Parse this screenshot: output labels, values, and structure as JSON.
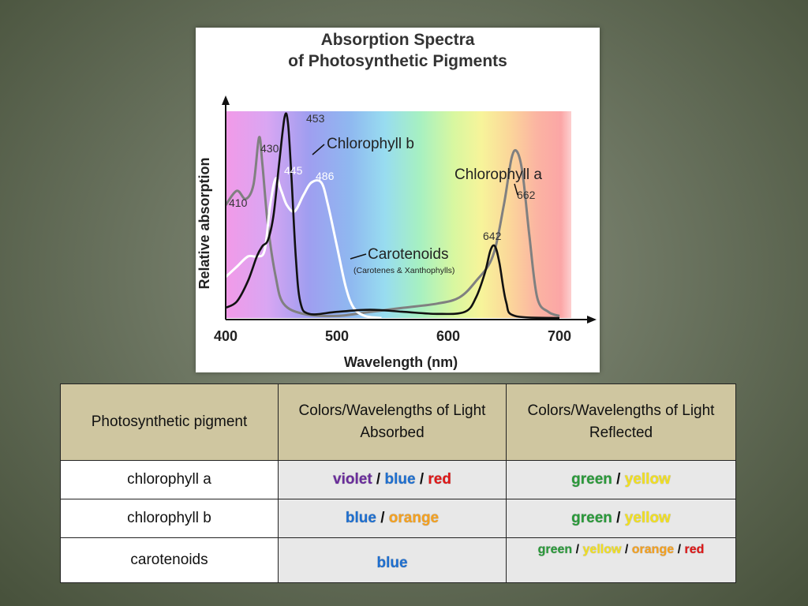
{
  "chart_data": {
    "type": "line",
    "title": [
      "Absorption Spectra",
      "of Photosynthetic Pigments"
    ],
    "xlabel": "Wavelength (nm)",
    "ylabel": "Relative absorption",
    "xlim": [
      400,
      700
    ],
    "xticks": [
      "400",
      "500",
      "600",
      "700"
    ],
    "spectrum_background": "visible light gradient from violet (400 nm) to red (700 nm)",
    "series": [
      {
        "name": "Chlorophyll a",
        "color": "#808080",
        "sublabel": "",
        "peaks": [
          "410",
          "430",
          "662"
        ],
        "points": [
          [
            400,
            0.55
          ],
          [
            410,
            0.62
          ],
          [
            418,
            0.58
          ],
          [
            425,
            0.65
          ],
          [
            430,
            0.88
          ],
          [
            433,
            0.75
          ],
          [
            438,
            0.45
          ],
          [
            445,
            0.2
          ],
          [
            452,
            0.07
          ],
          [
            470,
            0.02
          ],
          [
            500,
            0.01
          ],
          [
            530,
            0.03
          ],
          [
            560,
            0.05
          ],
          [
            590,
            0.07
          ],
          [
            610,
            0.1
          ],
          [
            625,
            0.18
          ],
          [
            640,
            0.3
          ],
          [
            650,
            0.55
          ],
          [
            657,
            0.78
          ],
          [
            662,
            0.81
          ],
          [
            667,
            0.7
          ],
          [
            673,
            0.4
          ],
          [
            680,
            0.1
          ],
          [
            690,
            0.03
          ],
          [
            700,
            0.01
          ]
        ]
      },
      {
        "name": "Chlorophyll b",
        "color": "#111111",
        "sublabel": "",
        "peaks": [
          "453",
          "642"
        ],
        "points": [
          [
            400,
            0.05
          ],
          [
            410,
            0.08
          ],
          [
            420,
            0.18
          ],
          [
            428,
            0.3
          ],
          [
            433,
            0.35
          ],
          [
            438,
            0.38
          ],
          [
            443,
            0.5
          ],
          [
            448,
            0.75
          ],
          [
            453,
            0.98
          ],
          [
            456,
            0.95
          ],
          [
            459,
            0.7
          ],
          [
            463,
            0.3
          ],
          [
            467,
            0.08
          ],
          [
            475,
            0.02
          ],
          [
            500,
            0.03
          ],
          [
            530,
            0.04
          ],
          [
            560,
            0.03
          ],
          [
            590,
            0.02
          ],
          [
            615,
            0.03
          ],
          [
            625,
            0.1
          ],
          [
            633,
            0.22
          ],
          [
            638,
            0.33
          ],
          [
            642,
            0.35
          ],
          [
            646,
            0.27
          ],
          [
            652,
            0.08
          ],
          [
            660,
            0.01
          ],
          [
            700,
            0.0
          ]
        ]
      },
      {
        "name": "Carotenoids",
        "color": "#ffffff",
        "sublabel": "(Carotenes & Xanthophylls)",
        "peaks": [
          "445",
          "486"
        ],
        "points": [
          [
            400,
            0.2
          ],
          [
            410,
            0.25
          ],
          [
            420,
            0.3
          ],
          [
            428,
            0.3
          ],
          [
            435,
            0.33
          ],
          [
            440,
            0.55
          ],
          [
            445,
            0.68
          ],
          [
            450,
            0.62
          ],
          [
            455,
            0.55
          ],
          [
            462,
            0.52
          ],
          [
            470,
            0.6
          ],
          [
            477,
            0.66
          ],
          [
            486,
            0.66
          ],
          [
            492,
            0.55
          ],
          [
            500,
            0.35
          ],
          [
            508,
            0.15
          ],
          [
            515,
            0.05
          ],
          [
            525,
            0.01
          ],
          [
            540,
            0.0
          ]
        ]
      }
    ]
  },
  "table": {
    "headers": [
      "Photosynthetic pigment",
      "Colors/Wavelengths of Light Absorbed",
      "Colors/Wavelengths of Light Reflected"
    ],
    "rows": [
      {
        "pigment": "chlorophyll a",
        "absorbed": [
          {
            "text": "violet",
            "color": "#6a2c9c"
          },
          {
            "text": "blue",
            "color": "#1e6fd0"
          },
          {
            "text": "red",
            "color": "#e01818"
          }
        ],
        "reflected": [
          {
            "text": "green",
            "color": "#2a9a3a"
          },
          {
            "text": "yellow",
            "color": "#f2e020"
          }
        ]
      },
      {
        "pigment": "chlorophyll b",
        "absorbed": [
          {
            "text": "blue",
            "color": "#1e6fd0"
          },
          {
            "text": "orange",
            "color": "#f5a11f"
          }
        ],
        "reflected": [
          {
            "text": "green",
            "color": "#2a9a3a"
          },
          {
            "text": "yellow",
            "color": "#f2e020"
          }
        ]
      },
      {
        "pigment": "carotenoids",
        "absorbed": [
          {
            "text": "blue",
            "color": "#1e6fd0"
          }
        ],
        "reflected": [
          {
            "text": "green",
            "color": "#2a9a3a"
          },
          {
            "text": "yellow",
            "color": "#f2e020"
          },
          {
            "text": "orange",
            "color": "#f5a11f"
          },
          {
            "text": "red",
            "color": "#e01818"
          }
        ]
      }
    ],
    "separator": "/"
  }
}
